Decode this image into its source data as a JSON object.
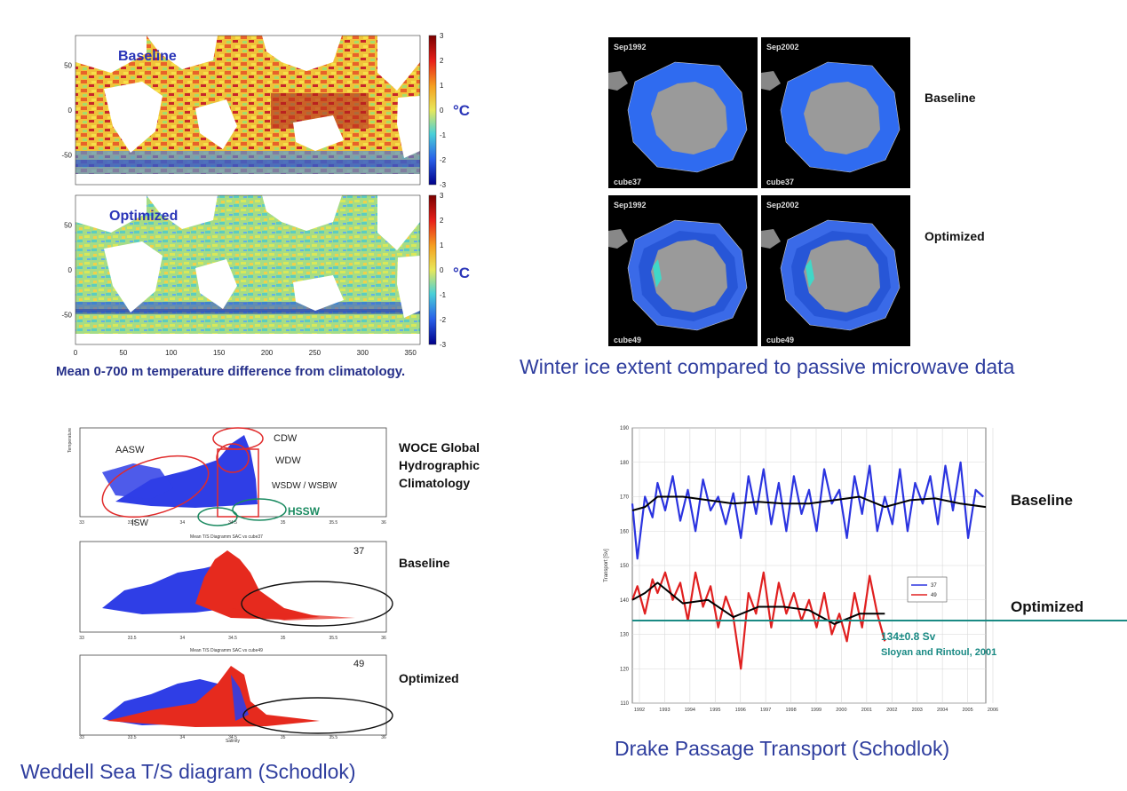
{
  "temperature_maps": {
    "caption": "Mean 0-700 m temperature difference from climatology.",
    "unit": "°C",
    "colorbar_ticks": [
      "3",
      "2",
      "1",
      "0",
      "-1",
      "-2",
      "-3"
    ],
    "lat_ticks": [
      "50",
      "0",
      "-50"
    ],
    "lon_ticks": [
      "0",
      "50",
      "100",
      "150",
      "200",
      "250",
      "300",
      "350"
    ],
    "panels": [
      {
        "label": "Baseline"
      },
      {
        "label": "Optimized"
      }
    ]
  },
  "ice_extent": {
    "caption": "Winter ice extent compared to passive microwave data",
    "row_labels": [
      "Baseline",
      "Optimized"
    ],
    "panels": [
      {
        "date": "Sep1992",
        "run": "cube37"
      },
      {
        "date": "Sep2002",
        "run": "cube37"
      },
      {
        "date": "Sep1992",
        "run": "cube49"
      },
      {
        "date": "Sep2002",
        "run": "cube49"
      }
    ]
  },
  "ts_diagram": {
    "caption": "Weddell Sea T/S diagram (Schodlok)",
    "row_labels": [
      "WOCE Global Hydrographic Climatology",
      "Baseline",
      "Optimized"
    ],
    "water_masses": [
      "AASW",
      "CDW",
      "WDW",
      "WSDW / WSBW",
      "HSSW",
      "ISW"
    ],
    "x_ticks": [
      "33",
      "33.5",
      "34",
      "34.5",
      "35",
      "35.5",
      "36"
    ],
    "xlabel": "Salinity",
    "ylabel": "Temperature",
    "panel_titles": [
      "Mean T/S Diagramm SAC vs cube37",
      "Mean T/S Diagramm SAC vs cube49"
    ],
    "panel_numbers": [
      "37",
      "49"
    ]
  },
  "colors": {
    "baseline": "#2b34e0",
    "optimized": "#e02020",
    "reference": "#1a8a84",
    "smoothed": "#000000"
  },
  "chart_data": {
    "type": "line",
    "title": "Drake Passage Transport (Schodlok)",
    "ylabel": "Transport [Sv]",
    "xlim": [
      1992,
      2006
    ],
    "ylim": [
      110,
      190
    ],
    "y_ticks": [
      110,
      120,
      130,
      140,
      150,
      160,
      170,
      180,
      190
    ],
    "x_ticks": [
      "1992",
      "1993",
      "1994",
      "1995",
      "1996",
      "1997",
      "1998",
      "1999",
      "2000",
      "2001",
      "2002",
      "2003",
      "2004",
      "2005",
      "2006"
    ],
    "legend": [
      "37",
      "49"
    ],
    "row_labels": [
      "Baseline",
      "Optimized"
    ],
    "reference_line": {
      "value": 134,
      "label": "134±0.8 Sv",
      "source": "Sloyan and Rintoul, 2001"
    },
    "series": [
      {
        "name": "37",
        "x": [
          1992.0,
          1992.2,
          1992.5,
          1992.8,
          1993.0,
          1993.3,
          1993.6,
          1993.9,
          1994.2,
          1994.5,
          1994.8,
          1995.1,
          1995.4,
          1995.7,
          1996.0,
          1996.3,
          1996.6,
          1996.9,
          1997.2,
          1997.5,
          1997.8,
          1998.1,
          1998.4,
          1998.7,
          1999.0,
          1999.3,
          1999.6,
          1999.9,
          2000.2,
          2000.5,
          2000.8,
          2001.1,
          2001.4,
          2001.7,
          2002.0,
          2002.3,
          2002.6,
          2002.9,
          2003.2,
          2003.5,
          2003.8,
          2004.1,
          2004.4,
          2004.7,
          2005.0,
          2005.3,
          2005.6,
          2005.9
        ],
        "values": [
          168,
          152,
          170,
          164,
          174,
          166,
          176,
          163,
          172,
          160,
          175,
          166,
          170,
          162,
          171,
          158,
          176,
          165,
          178,
          162,
          174,
          160,
          176,
          165,
          172,
          160,
          178,
          168,
          172,
          158,
          176,
          165,
          179,
          160,
          170,
          162,
          178,
          160,
          174,
          168,
          176,
          162,
          179,
          166,
          180,
          158,
          172,
          170
        ]
      },
      {
        "name": "49",
        "x": [
          1992.0,
          1992.2,
          1992.5,
          1992.8,
          1993.0,
          1993.3,
          1993.6,
          1993.9,
          1994.2,
          1994.5,
          1994.8,
          1995.1,
          1995.4,
          1995.7,
          1996.0,
          1996.3,
          1996.6,
          1996.9,
          1997.2,
          1997.5,
          1997.8,
          1998.1,
          1998.4,
          1998.7,
          1999.0,
          1999.3,
          1999.6,
          1999.9,
          2000.2,
          2000.5,
          2000.8,
          2001.1,
          2001.4,
          2001.7,
          2002.0
        ],
        "values": [
          140,
          144,
          136,
          146,
          142,
          148,
          140,
          145,
          134,
          148,
          138,
          144,
          132,
          141,
          135,
          120,
          142,
          136,
          148,
          132,
          145,
          136,
          142,
          134,
          140,
          132,
          142,
          130,
          136,
          128,
          142,
          132,
          147,
          136,
          128
        ]
      },
      {
        "name": "37 smoothed",
        "x": [
          1992.0,
          1992.5,
          1993.0,
          1994.0,
          1995.0,
          1996.0,
          1997.0,
          1998.0,
          1999.0,
          2000.0,
          2001.0,
          2002.0,
          2003.0,
          2004.0,
          2005.0,
          2006.0
        ],
        "values": [
          166,
          167,
          170,
          170,
          169,
          168,
          168.5,
          168,
          168,
          169,
          170,
          167,
          169,
          169.5,
          168,
          167
        ]
      },
      {
        "name": "49 smoothed",
        "x": [
          1992.0,
          1992.5,
          1993.0,
          1994.0,
          1995.0,
          1996.0,
          1997.0,
          1998.0,
          1999.0,
          2000.0,
          2001.0,
          2002.0
        ],
        "values": [
          140,
          142,
          145,
          139,
          140,
          135,
          138,
          138,
          137,
          133,
          136,
          136
        ]
      }
    ]
  }
}
